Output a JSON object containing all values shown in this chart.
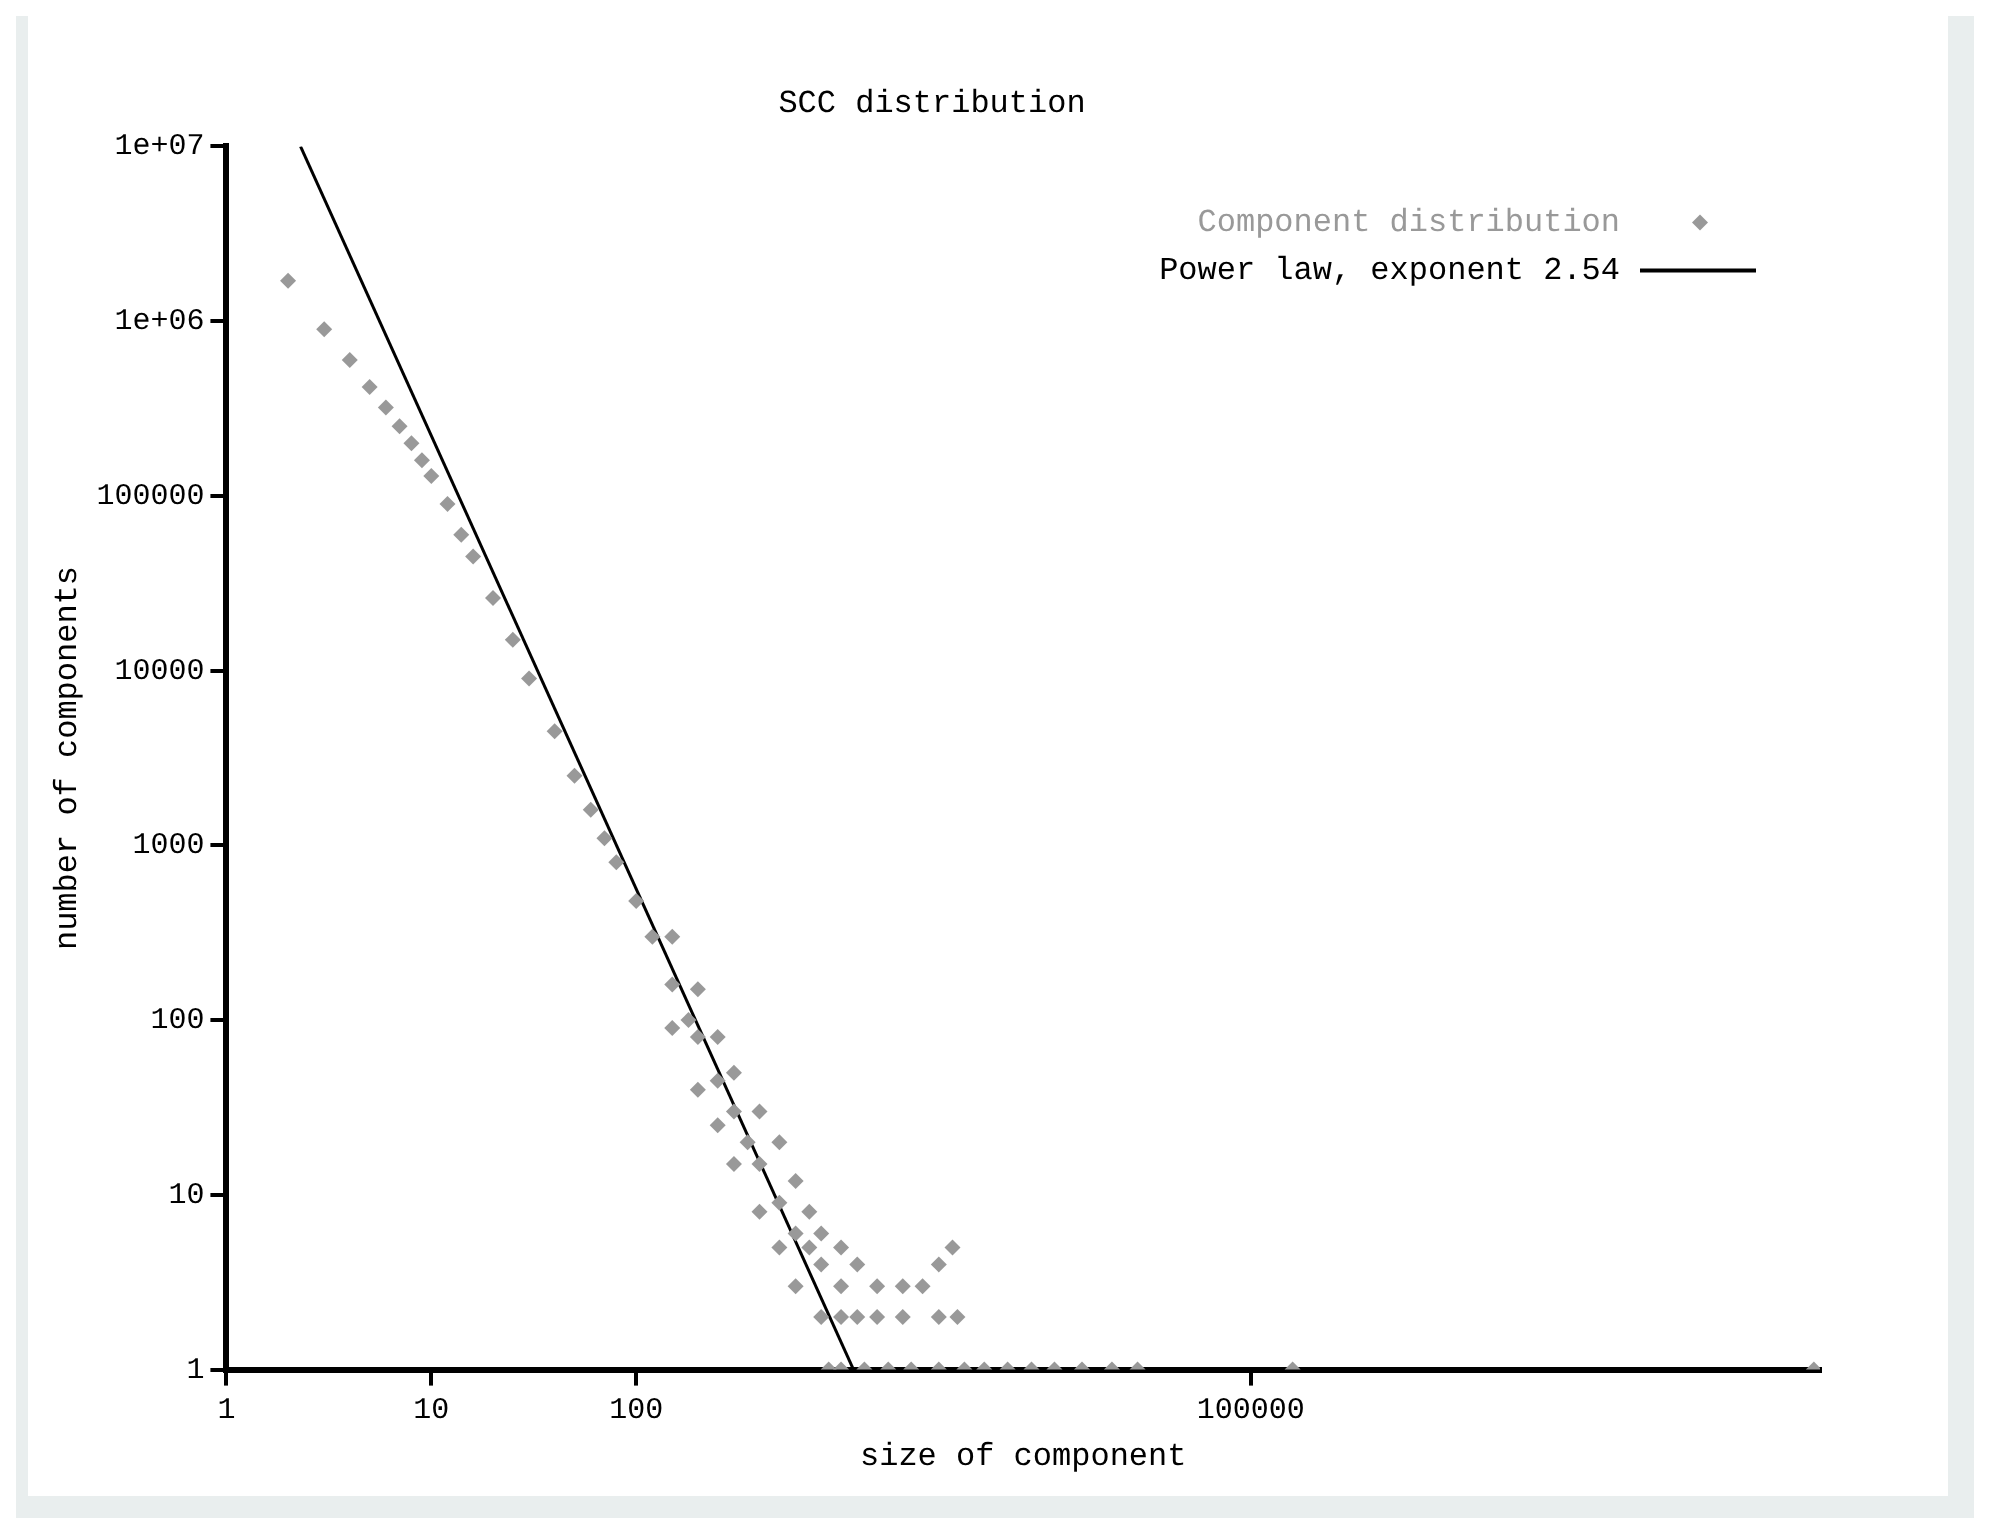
{
  "chart_data": {
    "type": "scatter",
    "title": "SCC distribution",
    "xlabel": "size of component",
    "ylabel": "number of components",
    "log": "xy",
    "xlim": [
      1,
      60000000
    ],
    "xticks": [
      1,
      10,
      100,
      100000
    ],
    "ylim": [
      1,
      10000000
    ],
    "yticks": [
      1,
      10,
      100,
      1000,
      10000,
      100000,
      {
        "value": 1000000,
        "label": "1e+06"
      },
      {
        "value": 10000000,
        "label": "1e+07"
      }
    ],
    "grid": false,
    "legend": "top right",
    "series": [
      {
        "name": "Component distribution",
        "marker": "diamond",
        "color": "#999999",
        "x": [
          2,
          3,
          4,
          5,
          6,
          7,
          8,
          9,
          10,
          12,
          14,
          16,
          20,
          25,
          30,
          40,
          50,
          60,
          70,
          80,
          100,
          120,
          150,
          180,
          200,
          250,
          300,
          350,
          400,
          500,
          600,
          700,
          800,
          1000,
          1200,
          150,
          150,
          200,
          200,
          250,
          250,
          300,
          300,
          400,
          400,
          500,
          500,
          600,
          600,
          700,
          800,
          800,
          1000,
          1000,
          1200,
          1500,
          1500,
          2000,
          2000,
          2500,
          3000,
          3000,
          3700,
          3500,
          870,
          1000,
          1300,
          1700,
          2200,
          3000,
          4000,
          5000,
          6500,
          8500,
          11000,
          15000,
          21000,
          28000,
          160000,
          56000000
        ],
        "values": [
          1700000,
          900000,
          600000,
          420000,
          320000,
          250000,
          200000,
          160000,
          130000,
          90000,
          60000,
          45000,
          26000,
          15000,
          9000,
          4500,
          2500,
          1600,
          1100,
          800,
          480,
          300,
          160,
          100,
          80,
          45,
          30,
          20,
          15,
          9,
          6,
          5,
          4,
          3,
          2,
          300,
          90,
          150,
          40,
          80,
          25,
          50,
          15,
          30,
          8,
          20,
          5,
          12,
          3,
          8,
          6,
          2,
          5,
          2,
          4,
          3,
          2,
          3,
          2,
          3,
          4,
          2,
          2,
          5,
          1,
          1,
          1,
          1,
          1,
          1,
          1,
          1,
          1,
          1,
          1,
          1,
          1,
          1,
          1,
          1
        ]
      },
      {
        "name": "Power law, exponent 2.54",
        "type": "line",
        "color": "#000000",
        "x": [
          2.3,
          1150
        ],
        "values": [
          10000000,
          1
        ]
      }
    ]
  }
}
